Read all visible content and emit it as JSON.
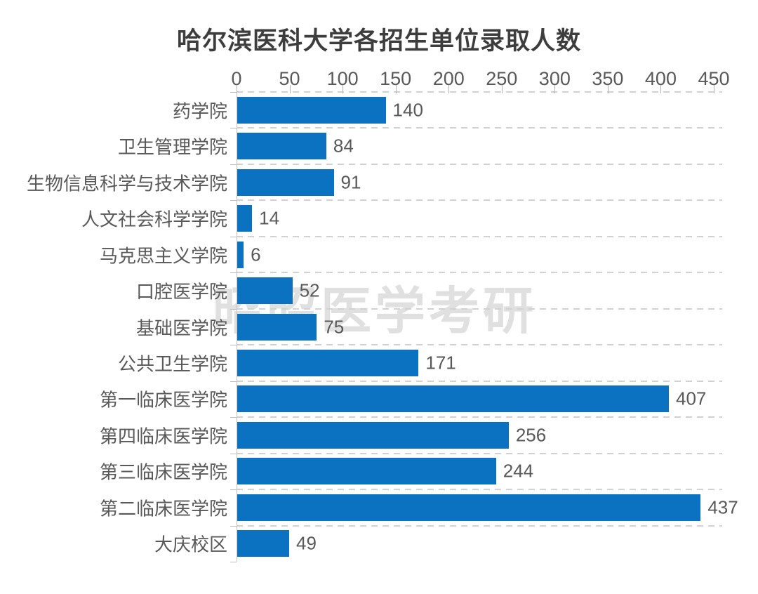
{
  "chart_data": {
    "type": "bar",
    "orientation": "horizontal",
    "title": "哈尔滨医科大学各招生单位录取人数",
    "categories": [
      "药学院",
      "卫生管理学院",
      "生物信息科学与技术学院",
      "人文社会科学学院",
      "马克思主义学院",
      "口腔医学院",
      "基础医学院",
      "公共卫生学院",
      "第一临床医学院",
      "第四临床医学院",
      "第三临床医学院",
      "第二临床医学院",
      "大庆校区"
    ],
    "values": [
      140,
      84,
      91,
      14,
      6,
      52,
      75,
      171,
      407,
      256,
      244,
      437,
      49
    ],
    "xticks": [
      0,
      50,
      100,
      150,
      200,
      250,
      300,
      350,
      400,
      450
    ],
    "xlim": [
      0,
      450
    ],
    "xlabel": "",
    "ylabel": "",
    "value_labels": true,
    "legend": "none",
    "grid": "dashed-horizontal-row-separators",
    "bar_color": "#0b72c2",
    "label_color": "#595959",
    "title_color": "#3d3d3d"
  },
  "watermark": {
    "text": "昭昭医学考研",
    "color": "#e0e0e0"
  }
}
